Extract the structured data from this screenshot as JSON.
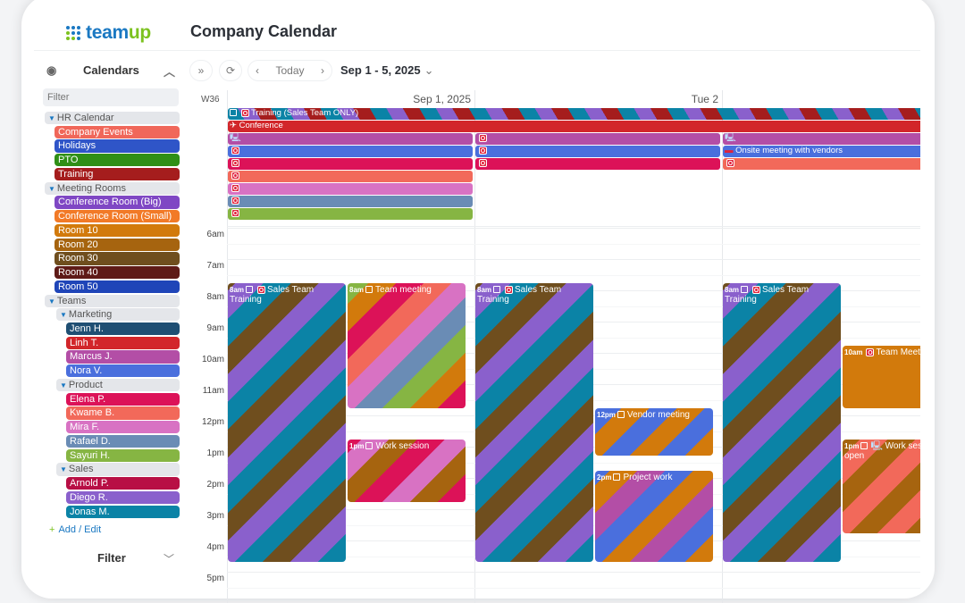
{
  "app": {
    "logo_main": "team",
    "logo_accent": "up",
    "title": "Company Calendar"
  },
  "sidebar": {
    "header": "Calendars",
    "filter_placeholder": "Filter",
    "add_label": "Add / Edit",
    "filter_label": "Filter",
    "items": [
      {
        "type": "group",
        "label": "HR Calendar",
        "level": 0
      },
      {
        "type": "cal",
        "label": "Company Events",
        "color": "#f0675a",
        "level": 1
      },
      {
        "type": "cal",
        "label": "Holidays",
        "color": "#2f55c8",
        "level": 1
      },
      {
        "type": "cal",
        "label": "PTO",
        "color": "#2f8f16",
        "level": 1
      },
      {
        "type": "cal",
        "label": "Training",
        "color": "#a51d1d",
        "level": 1
      },
      {
        "type": "group",
        "label": "Meeting Rooms",
        "level": 0
      },
      {
        "type": "cal",
        "label": "Conference Room (Big)",
        "color": "#7f47c4",
        "level": 1
      },
      {
        "type": "cal",
        "label": "Conference Room (Small)",
        "color": "#f27a27",
        "level": 1
      },
      {
        "type": "cal",
        "label": "Room 10",
        "color": "#d27a0c",
        "level": 1
      },
      {
        "type": "cal",
        "label": "Room 20",
        "color": "#a6640f",
        "level": 1
      },
      {
        "type": "cal",
        "label": "Room 30",
        "color": "#6f4e1e",
        "level": 1
      },
      {
        "type": "cal",
        "label": "Room 40",
        "color": "#5e1a17",
        "level": 1
      },
      {
        "type": "cal",
        "label": "Room 50",
        "color": "#1f45b8",
        "level": 1
      },
      {
        "type": "group",
        "label": "Teams",
        "level": 0
      },
      {
        "type": "group",
        "label": "Marketing",
        "level": 1
      },
      {
        "type": "cal",
        "label": "Jenn H.",
        "color": "#1f4f73",
        "level": 2
      },
      {
        "type": "cal",
        "label": "Linh T.",
        "color": "#d2262a",
        "level": 2
      },
      {
        "type": "cal",
        "label": "Marcus J.",
        "color": "#b34ea6",
        "level": 2
      },
      {
        "type": "cal",
        "label": "Nora V.",
        "color": "#4a6fdd",
        "level": 2
      },
      {
        "type": "group",
        "label": "Product",
        "level": 1
      },
      {
        "type": "cal",
        "label": "Elena P.",
        "color": "#dc1258",
        "level": 2
      },
      {
        "type": "cal",
        "label": "Kwame B.",
        "color": "#f2695a",
        "level": 2
      },
      {
        "type": "cal",
        "label": "Mira F.",
        "color": "#d872c3",
        "level": 2
      },
      {
        "type": "cal",
        "label": "Rafael D.",
        "color": "#6a8cb5",
        "level": 2
      },
      {
        "type": "cal",
        "label": "Sayuri H.",
        "color": "#86b543",
        "level": 2
      },
      {
        "type": "group",
        "label": "Sales",
        "level": 1
      },
      {
        "type": "cal",
        "label": "Arnold P.",
        "color": "#b80f45",
        "level": 2
      },
      {
        "type": "cal",
        "label": "Diego R.",
        "color": "#8a60cc",
        "level": 2
      },
      {
        "type": "cal",
        "label": "Jonas M.",
        "color": "#0b83a6",
        "level": 2
      }
    ]
  },
  "toolbar": {
    "today": "Today",
    "range": "Sep 1 - 5, 2025"
  },
  "grid": {
    "week": "W36",
    "days": [
      "Sep 1, 2025",
      "Tue 2"
    ],
    "hours": [
      "6am",
      "7am",
      "8am",
      "9am",
      "10am",
      "11am",
      "12pm",
      "1pm",
      "2pm",
      "3pm",
      "4pm",
      "5pm"
    ],
    "allday": [
      {
        "day": 0,
        "span": 3,
        "row": 0,
        "label": "Training (Sales Team ONLY)",
        "icons": [
          "copy",
          "o"
        ],
        "colors": [
          "#0b83a6",
          "#8a60cc",
          "#a51d1d"
        ]
      },
      {
        "day": 0,
        "span": 3,
        "row": 1,
        "label": "Conference",
        "icons": [
          "plane"
        ],
        "colors": [
          "#d2262a"
        ]
      },
      {
        "day": 0,
        "span": 1,
        "row": 2,
        "label": "",
        "icons": [
          "pc"
        ],
        "colors": [
          "#b34ea6"
        ]
      },
      {
        "day": 1,
        "span": 1,
        "row": 2,
        "label": "",
        "icons": [
          "o"
        ],
        "colors": [
          "#b34ea6"
        ]
      },
      {
        "day": 2,
        "span": 1,
        "row": 2,
        "label": "",
        "icons": [
          "pc"
        ],
        "colors": [
          "#b34ea6"
        ]
      },
      {
        "day": 0,
        "span": 1,
        "row": 3,
        "label": "",
        "icons": [
          "o"
        ],
        "colors": [
          "#4a6fdd"
        ]
      },
      {
        "day": 1,
        "span": 1,
        "row": 3,
        "label": "",
        "icons": [
          "o"
        ],
        "colors": [
          "#4a6fdd"
        ]
      },
      {
        "day": 2,
        "span": 1,
        "row": 3,
        "label": "Onsite meeting with vendors",
        "icons": [
          "car"
        ],
        "colors": [
          "#4a6fdd"
        ]
      },
      {
        "day": 0,
        "span": 1,
        "row": 4,
        "label": "",
        "icons": [
          "o"
        ],
        "colors": [
          "#dc1258"
        ]
      },
      {
        "day": 1,
        "span": 1,
        "row": 4,
        "label": "",
        "icons": [
          "o"
        ],
        "colors": [
          "#dc1258"
        ]
      },
      {
        "day": 2,
        "span": 1,
        "row": 4,
        "label": "",
        "icons": [
          "o"
        ],
        "colors": [
          "#f2695a"
        ]
      },
      {
        "day": 0,
        "span": 1,
        "row": 5,
        "label": "",
        "icons": [
          "o"
        ],
        "colors": [
          "#f2695a"
        ]
      },
      {
        "day": 0,
        "span": 1,
        "row": 6,
        "label": "",
        "icons": [
          "o"
        ],
        "colors": [
          "#d872c3"
        ]
      },
      {
        "day": 0,
        "span": 1,
        "row": 7,
        "label": "",
        "icons": [
          "o"
        ],
        "colors": [
          "#6a8cb5"
        ]
      },
      {
        "day": 0,
        "span": 1,
        "row": 8,
        "label": "",
        "icons": [
          "o"
        ],
        "colors": [
          "#86b543"
        ]
      }
    ],
    "events": [
      {
        "day": 0,
        "col": 0,
        "start": 8,
        "end": 16.9,
        "time": "8am",
        "label": "Sales Team Training",
        "icons": [
          "copy",
          "o"
        ],
        "colors": [
          "#0b83a6",
          "#8a60cc",
          "#6f4e1e"
        ]
      },
      {
        "day": 0,
        "col": 1,
        "start": 8,
        "end": 12,
        "time": "8am",
        "label": "Team meeting",
        "icons": [
          "copy"
        ],
        "colors": [
          "#dc1258",
          "#d27a0c",
          "#86b543",
          "#6a8cb5",
          "#d872c3",
          "#f2695a"
        ]
      },
      {
        "day": 0,
        "col": 1,
        "start": 13,
        "end": 15,
        "time": "1pm",
        "label": "Work session",
        "icons": [
          "copy"
        ],
        "colors": [
          "#dc1258",
          "#a6640f",
          "#d872c3"
        ]
      },
      {
        "day": 1,
        "col": 0,
        "start": 8,
        "end": 16.9,
        "time": "8am",
        "label": "Sales Team Training",
        "icons": [
          "copy",
          "o"
        ],
        "colors": [
          "#0b83a6",
          "#8a60cc",
          "#6f4e1e"
        ]
      },
      {
        "day": 1,
        "col": 1,
        "start": 12,
        "end": 13.5,
        "time": "12pm",
        "label": "Vendor meeting",
        "icons": [
          "copy"
        ],
        "colors": [
          "#d27a0c",
          "#4a6fdd"
        ]
      },
      {
        "day": 1,
        "col": 1,
        "start": 14,
        "end": 16.9,
        "time": "2pm",
        "label": "Project work",
        "icons": [
          "copy"
        ],
        "colors": [
          "#d27a0c",
          "#4a6fdd",
          "#b34ea6"
        ]
      },
      {
        "day": 2,
        "col": 0,
        "start": 8,
        "end": 16.9,
        "time": "8am",
        "label": "Sales Team Training",
        "icons": [
          "copy",
          "o"
        ],
        "colors": [
          "#0b83a6",
          "#8a60cc",
          "#6f4e1e"
        ]
      },
      {
        "day": 2,
        "col": 1,
        "start": 10,
        "end": 12,
        "time": "10am",
        "label": "Team Meeting",
        "icons": [
          "o"
        ],
        "colors": [
          "#d27a0c"
        ]
      },
      {
        "day": 2,
        "col": 1,
        "start": 13,
        "end": 16,
        "time": "1pm",
        "label": "Work session open",
        "icons": [
          "copy",
          "pc"
        ],
        "colors": [
          "#f2695a",
          "#a6640f"
        ]
      }
    ]
  }
}
